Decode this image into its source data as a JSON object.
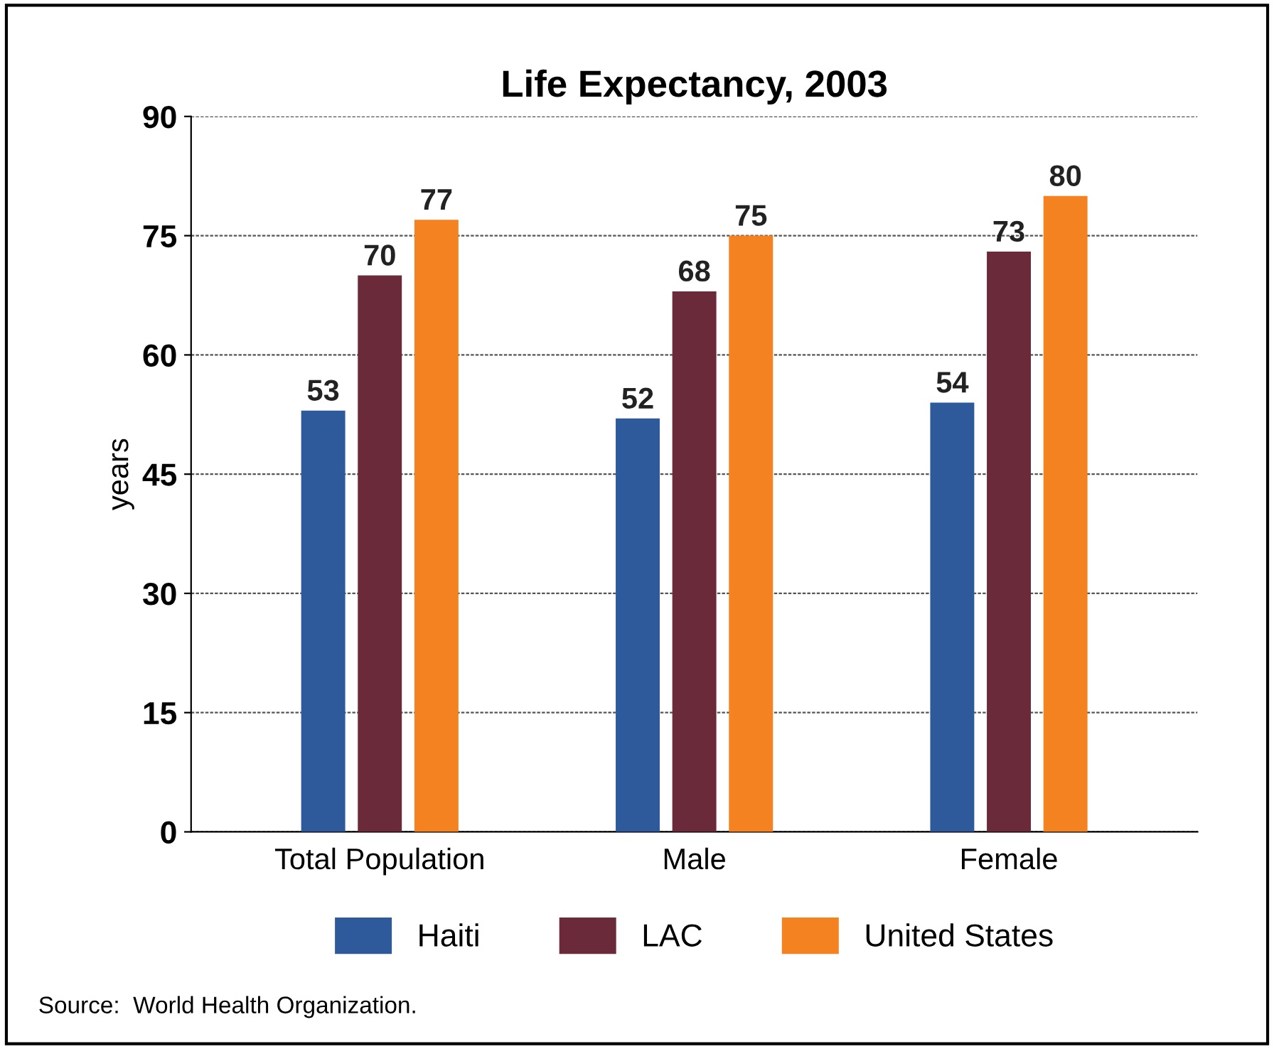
{
  "chart_data": {
    "type": "bar",
    "title": "Life Expectancy, 2003",
    "ylabel": "years",
    "categories": [
      "Total Population",
      "Male",
      "Female"
    ],
    "series": [
      {
        "name": "Haiti",
        "color": "#2e5a9c",
        "values": [
          53,
          52,
          54
        ]
      },
      {
        "name": "LAC",
        "color": "#6b2a3a",
        "values": [
          70,
          68,
          73
        ]
      },
      {
        "name": "United States",
        "color": "#f58220",
        "values": [
          77,
          75,
          80
        ]
      }
    ],
    "ylim": [
      0,
      90
    ],
    "yticks": [
      0,
      15,
      30,
      45,
      60,
      75,
      90
    ],
    "grid": "y",
    "legend": "bottom",
    "data_labels": true,
    "annotations": [
      "Source:  World Health Organization."
    ]
  }
}
